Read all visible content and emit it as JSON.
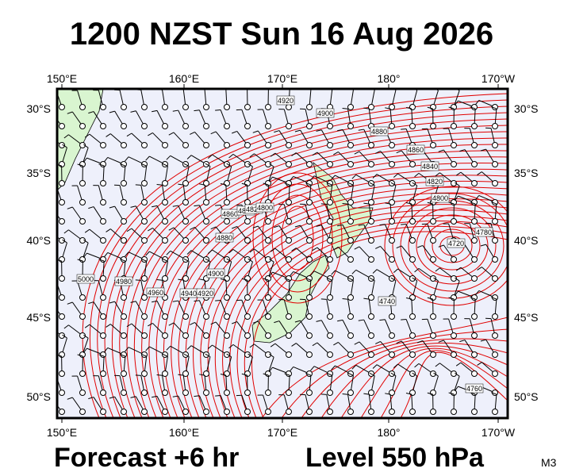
{
  "header": {
    "title": "1200 NZST Sun 16 Aug 2026"
  },
  "map": {
    "longitudes": [
      "150°E",
      "160°E",
      "170°E",
      "180°",
      "170°W"
    ],
    "latitudes": [
      "30°S",
      "35°S",
      "40°S",
      "45°S",
      "50°S"
    ],
    "contour_labels": [
      "4920",
      "4900",
      "4880",
      "4860",
      "4840",
      "4820",
      "4800",
      "4780",
      "4720",
      "4740",
      "4760",
      "5000",
      "4980",
      "4960",
      "4940",
      "4920",
      "4900",
      "4880",
      "4860",
      "4840",
      "4820",
      "4800"
    ]
  },
  "footer": {
    "forecast": "Forecast +6 hr",
    "level": "Level 550 hPa",
    "code": "M3"
  }
}
